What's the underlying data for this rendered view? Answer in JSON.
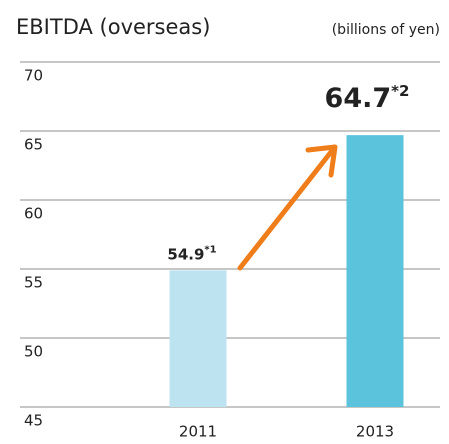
{
  "chart_data": {
    "type": "bar",
    "title": "EBITDA (overseas)",
    "unit_label": "(billions of yen)",
    "categories": [
      "2011",
      "2013"
    ],
    "values": [
      54.9,
      64.7
    ],
    "value_notes": [
      "*1",
      "*2"
    ],
    "colors": [
      "#bde3f1",
      "#5bc3dc"
    ],
    "ylim": [
      45,
      70
    ],
    "yticks": [
      45,
      50,
      55,
      60,
      65,
      70
    ],
    "grid": true
  }
}
